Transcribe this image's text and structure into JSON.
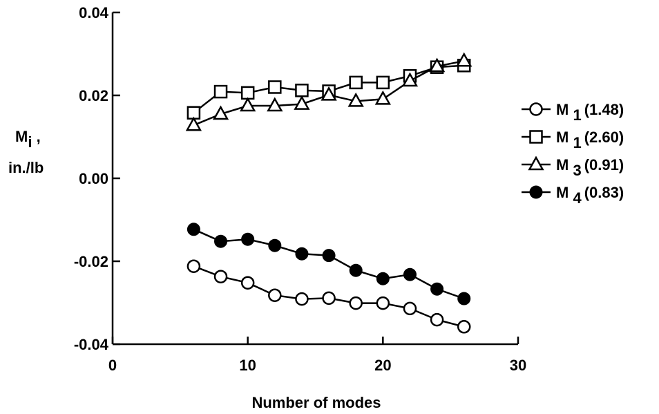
{
  "chart_data": {
    "type": "line",
    "title": "",
    "xlabel": "Number of modes",
    "ylabel": {
      "symbol": "M",
      "subscript": "i",
      "suffix": " ,",
      "units": "in./lb"
    },
    "xlim": [
      0,
      30
    ],
    "ylim": [
      -0.04,
      0.04
    ],
    "xticks": [
      0,
      10,
      20,
      30
    ],
    "xtick_labels": [
      "0",
      "10",
      "20",
      "30"
    ],
    "yticks": [
      0.04,
      0.02,
      0.0,
      -0.02,
      -0.04
    ],
    "ytick_labels": [
      "0.04",
      "0.02",
      "0.00",
      "-0.02",
      "-0.04"
    ],
    "grid": false,
    "legend_position": "right",
    "x": [
      6,
      8,
      10,
      12,
      14,
      16,
      18,
      20,
      22,
      24,
      26
    ],
    "series": [
      {
        "name": "M 1 (1.48)",
        "label": {
          "symbol": "M",
          "subscript": "1",
          "value": "(1.48)"
        },
        "marker": "open-circle",
        "values": [
          -0.0212,
          -0.0237,
          -0.0252,
          -0.0282,
          -0.0291,
          -0.0289,
          -0.0301,
          -0.0301,
          -0.0314,
          -0.0341,
          -0.0358
        ]
      },
      {
        "name": "M 1 (2.60)",
        "label": {
          "symbol": "M",
          "subscript": "1",
          "value": "(2.60)"
        },
        "marker": "open-square",
        "values": [
          0.0158,
          0.0209,
          0.0206,
          0.022,
          0.0212,
          0.021,
          0.0231,
          0.0231,
          0.0247,
          0.0268,
          0.0272
        ]
      },
      {
        "name": "M 3 (0.91)",
        "label": {
          "symbol": "M",
          "subscript": "3",
          "value": "(0.91)"
        },
        "marker": "open-triangle",
        "values": [
          0.0128,
          0.0155,
          0.0175,
          0.0175,
          0.0179,
          0.0201,
          0.0186,
          0.0191,
          0.0235,
          0.027,
          0.0283
        ]
      },
      {
        "name": "M 4 (0.83)",
        "label": {
          "symbol": "M",
          "subscript": "4",
          "value": "(0.83)"
        },
        "marker": "filled-circle",
        "values": [
          -0.0123,
          -0.0152,
          -0.0147,
          -0.0162,
          -0.0182,
          -0.0186,
          -0.0222,
          -0.0242,
          -0.0232,
          -0.0267,
          -0.029
        ]
      }
    ]
  }
}
